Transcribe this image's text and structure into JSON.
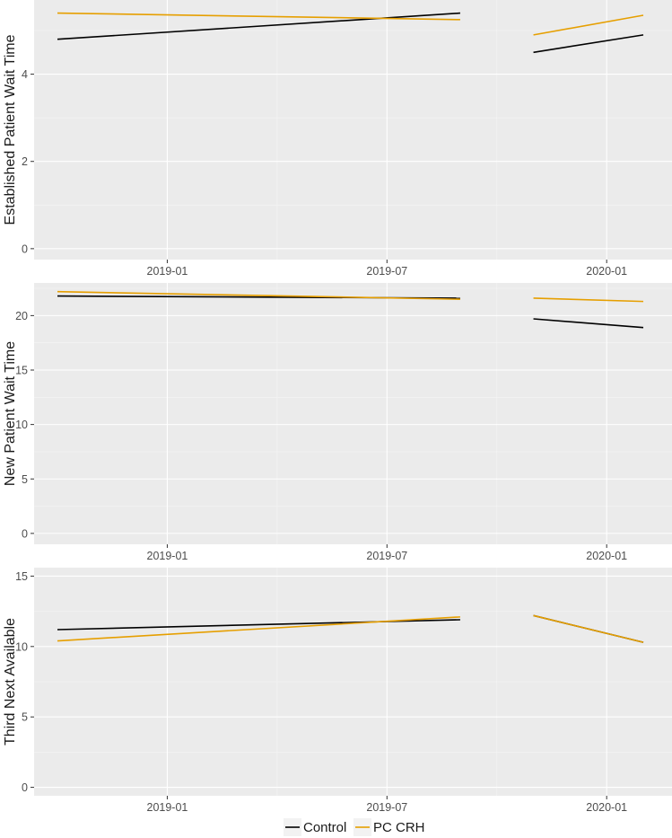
{
  "chart_data": [
    {
      "type": "line",
      "ylabel": "Established Patient Wait Time",
      "ylim": [
        -0.25,
        5.7
      ],
      "y_ticks": [
        0,
        2,
        4
      ],
      "x_ticks": [
        "2019-01",
        "2019-07",
        "2020-01"
      ],
      "grid": true,
      "series": [
        {
          "name": "Control",
          "color": "#000000",
          "segments": [
            {
              "x": [
                "2018-10",
                "2019-09"
              ],
              "y": [
                4.8,
                5.4
              ]
            },
            {
              "x": [
                "2019-11",
                "2020-02"
              ],
              "y": [
                4.5,
                4.9
              ]
            }
          ]
        },
        {
          "name": "PC CRH",
          "color": "#E69F00",
          "segments": [
            {
              "x": [
                "2018-10",
                "2019-09"
              ],
              "y": [
                5.4,
                5.25
              ]
            },
            {
              "x": [
                "2019-11",
                "2020-02"
              ],
              "y": [
                4.9,
                5.35
              ]
            }
          ]
        }
      ]
    },
    {
      "type": "line",
      "ylabel": "New Patient Wait Time",
      "ylim": [
        -1,
        23
      ],
      "y_ticks": [
        0,
        5,
        10,
        15,
        20
      ],
      "x_ticks": [
        "2019-01",
        "2019-07",
        "2020-01"
      ],
      "grid": true,
      "series": [
        {
          "name": "Control",
          "color": "#000000",
          "segments": [
            {
              "x": [
                "2018-10",
                "2019-09"
              ],
              "y": [
                21.8,
                21.6
              ]
            },
            {
              "x": [
                "2019-11",
                "2020-02"
              ],
              "y": [
                19.7,
                18.9
              ]
            }
          ]
        },
        {
          "name": "PC CRH",
          "color": "#E69F00",
          "segments": [
            {
              "x": [
                "2018-10",
                "2019-09"
              ],
              "y": [
                22.2,
                21.5
              ]
            },
            {
              "x": [
                "2019-11",
                "2020-02"
              ],
              "y": [
                21.6,
                21.3
              ]
            }
          ]
        }
      ]
    },
    {
      "type": "line",
      "ylabel": "Third Next Available",
      "ylim": [
        -0.6,
        15.6
      ],
      "y_ticks": [
        0,
        5,
        10,
        15
      ],
      "x_ticks": [
        "2019-01",
        "2019-07",
        "2020-01"
      ],
      "grid": true,
      "series": [
        {
          "name": "Control",
          "color": "#000000",
          "segments": [
            {
              "x": [
                "2018-10",
                "2019-09"
              ],
              "y": [
                11.2,
                11.9
              ]
            },
            {
              "x": [
                "2019-11",
                "2020-02"
              ],
              "y": [
                12.2,
                10.3
              ]
            }
          ]
        },
        {
          "name": "PC CRH",
          "color": "#E69F00",
          "segments": [
            {
              "x": [
                "2018-10",
                "2019-09"
              ],
              "y": [
                10.4,
                12.1
              ]
            },
            {
              "x": [
                "2019-11",
                "2020-02"
              ],
              "y": [
                12.2,
                10.3
              ]
            }
          ]
        }
      ]
    }
  ],
  "legend": {
    "position": "bottom",
    "items": [
      {
        "label": "Control",
        "color": "#000000"
      },
      {
        "label": "PC CRH",
        "color": "#E69F00"
      }
    ]
  }
}
